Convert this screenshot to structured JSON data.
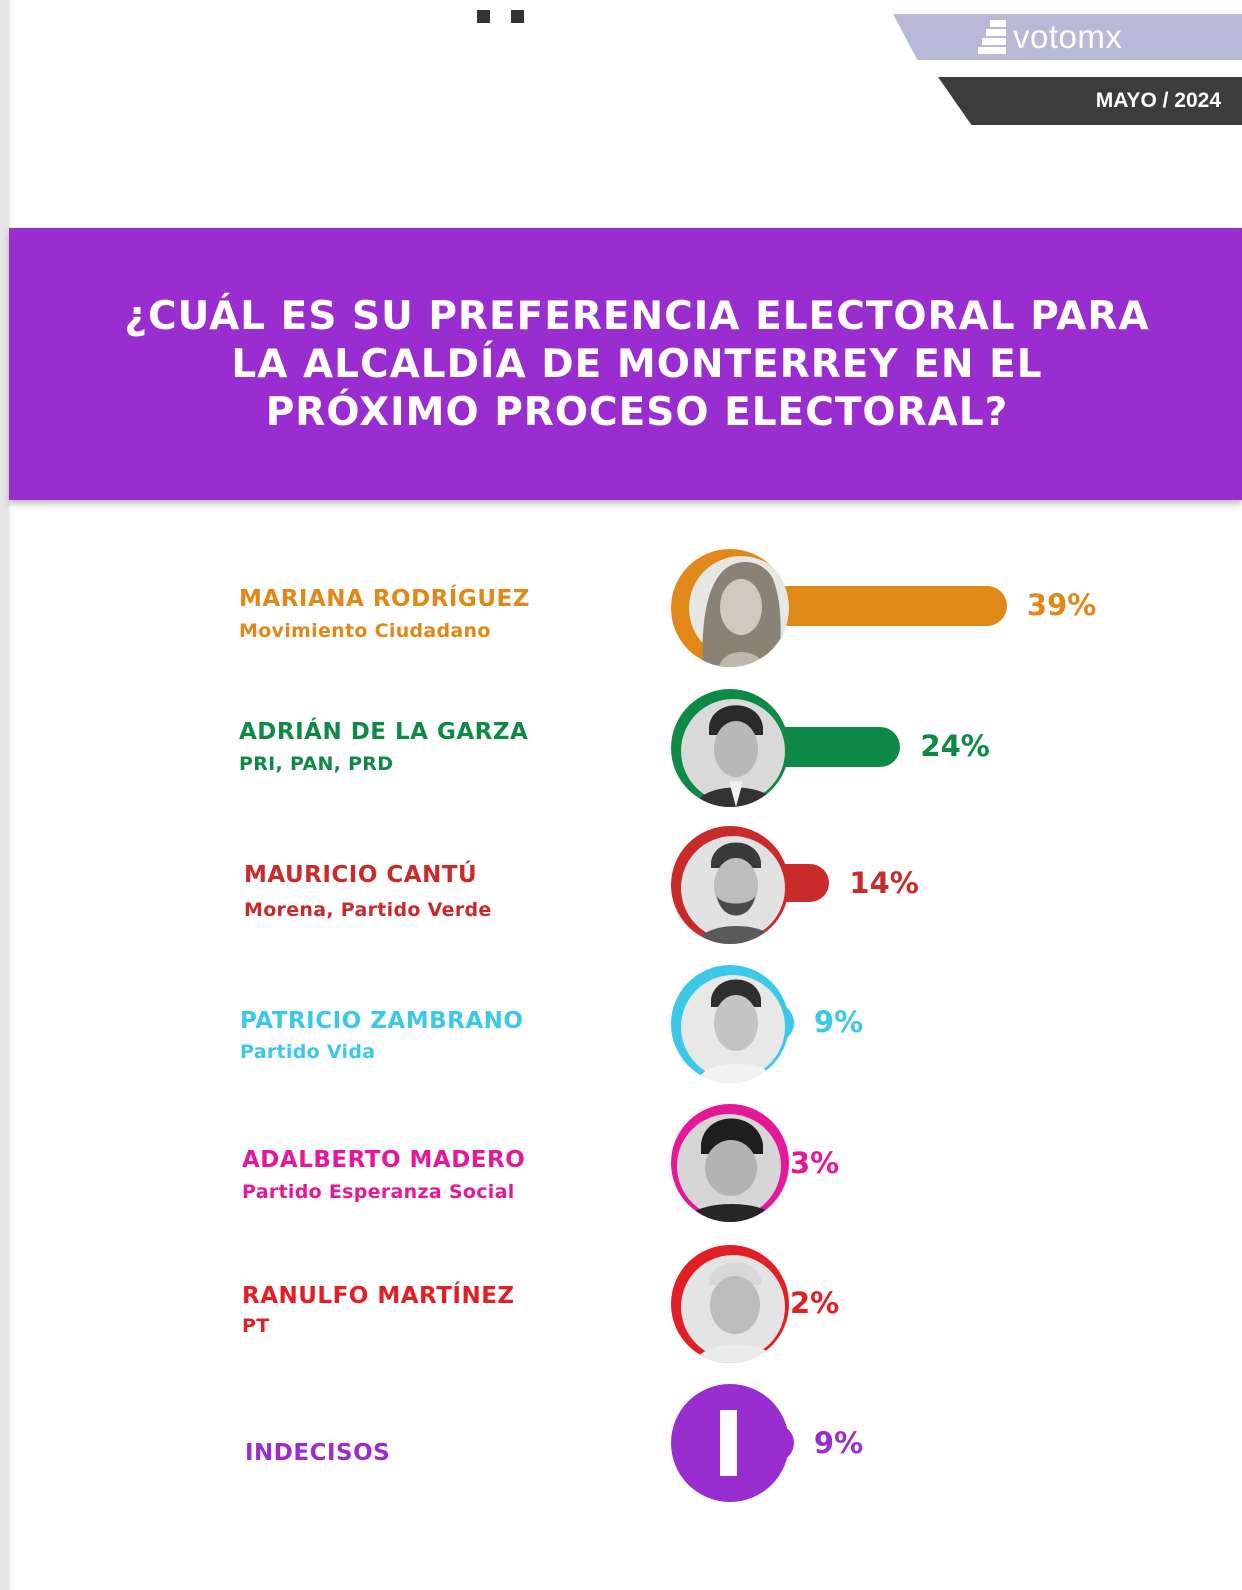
{
  "brand": {
    "logo_text": "votomx",
    "date": "MAYO / 2024"
  },
  "header": {
    "title": "¿CUÁL ES SU PREFERENCIA ELECTORAL PARA LA ALCALDÍA DE MONTERREY EN EL PRÓXIMO PROCESO ELECTORAL?"
  },
  "colors": {
    "banner": "#9a2dd0",
    "logo_band": "#b7b9d6",
    "date_band": "#3c3c3c",
    "movimiento_ciudadano": "#e08818",
    "pri_pan_prd": "#0e8a46",
    "morena": "#c92a2a",
    "vida": "#3cc8e8",
    "esperanza_social": "#e6189a",
    "pt": "#e31e24",
    "indecisos": "#9a2dd0"
  },
  "chart_data": {
    "type": "bar",
    "orientation": "horizontal",
    "categories": [
      "MARIANA RODRÍGUEZ",
      "ADRIÁN DE LA GARZA",
      "MAURICIO CANTÚ",
      "PATRICIO ZAMBRANO",
      "ADALBERTO MADERO",
      "RANULFO MARTÍNEZ",
      "INDECISOS"
    ],
    "parties": [
      "Movimiento Ciudadano",
      "PRI, PAN, PRD",
      "Morena, Partido Verde",
      "Partido Vida",
      "Partido Esperanza Social",
      "PT",
      ""
    ],
    "values": [
      39,
      24,
      14,
      9,
      3,
      2,
      9
    ],
    "value_labels": [
      "39%",
      "24%",
      "14%",
      "9%",
      "3%",
      "2%",
      "9%"
    ],
    "unit": "%",
    "colors": [
      "#e08818",
      "#0e8a46",
      "#c92a2a",
      "#3cc8e8",
      "#e6189a",
      "#e31e24",
      "#9a2dd0"
    ]
  }
}
